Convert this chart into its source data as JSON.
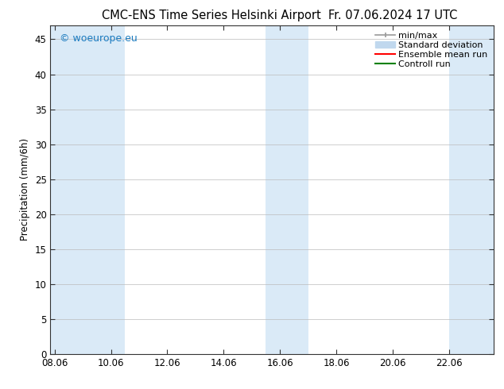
{
  "title_left": "CMC-ENS Time Series Helsinki Airport",
  "title_right": "Fr. 07.06.2024 17 UTC",
  "ylabel": "Precipitation (mm/6h)",
  "watermark": "© woeurope.eu",
  "watermark_color": "#1a7abf",
  "xlim_start": 7.85,
  "xlim_end": 23.6,
  "ylim": [
    0,
    47
  ],
  "yticks": [
    0,
    5,
    10,
    15,
    20,
    25,
    30,
    35,
    40,
    45
  ],
  "xtick_labels": [
    "08.06",
    "10.06",
    "12.06",
    "14.06",
    "16.06",
    "18.06",
    "20.06",
    "22.06"
  ],
  "xtick_positions": [
    8,
    10,
    12,
    14,
    16,
    18,
    20,
    22
  ],
  "shaded_bands": [
    {
      "x_start": 7.85,
      "x_end": 8.5,
      "color": "#daeaf7"
    },
    {
      "x_start": 8.5,
      "x_end": 10.5,
      "color": "#daeaf7"
    },
    {
      "x_start": 15.5,
      "x_end": 16.5,
      "color": "#daeaf7"
    },
    {
      "x_start": 16.5,
      "x_end": 17.0,
      "color": "#daeaf7"
    },
    {
      "x_start": 22.0,
      "x_end": 23.6,
      "color": "#daeaf7"
    }
  ],
  "legend_items": [
    {
      "label": "min/max",
      "color": "#999999",
      "lw": 1.2,
      "style": "minmax"
    },
    {
      "label": "Standard deviation",
      "color": "#c0d8ee",
      "lw": 8,
      "style": "band"
    },
    {
      "label": "Ensemble mean run",
      "color": "#ff0000",
      "lw": 1.5,
      "style": "line"
    },
    {
      "label": "Controll run",
      "color": "#008000",
      "lw": 1.5,
      "style": "line"
    }
  ],
  "bg_color": "#ffffff",
  "plot_bg_color": "#ffffff",
  "grid_color": "#bbbbbb",
  "title_fontsize": 10.5,
  "tick_fontsize": 8.5,
  "ylabel_fontsize": 8.5,
  "legend_fontsize": 8,
  "watermark_fontsize": 9
}
